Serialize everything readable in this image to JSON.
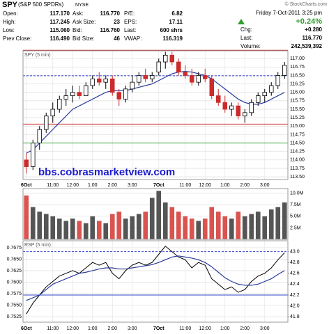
{
  "header": {
    "symbol": "SPY",
    "name": "(S&P 500 SPDRs)",
    "exchange": "NYSE",
    "copyright": "© StockCharts.com",
    "date": "Friday  7-Oct-2011  3:25 pm",
    "change_pct": "+0.24%",
    "quote": [
      [
        {
          "label": "Open:",
          "value": "117.170"
        },
        {
          "label": "Ask:",
          "value": "116.770"
        },
        {
          "label": "P/E:",
          "value": "6.82"
        }
      ],
      [
        {
          "label": "High:",
          "value": "117.245"
        },
        {
          "label": "Ask Size:",
          "value": "23"
        },
        {
          "label": "EPS:",
          "value": "17.11"
        }
      ],
      [
        {
          "label": "Low:",
          "value": "115.060"
        },
        {
          "label": "Bid:",
          "value": "116.760"
        },
        {
          "label": "Last:",
          "value": "600 shrs"
        }
      ],
      [
        {
          "label": "Prev Close:",
          "value": "116.490"
        },
        {
          "label": "Bid Size:",
          "value": "46"
        },
        {
          "label": "VWAP:",
          "value": "116.319"
        }
      ]
    ],
    "summary": [
      {
        "label": "Chg:",
        "value": "+0.280"
      },
      {
        "label": "Last:",
        "value": "116.770"
      },
      {
        "label": "Volume:",
        "value": "242,539,392"
      }
    ]
  },
  "chart_data": [
    {
      "type": "candlestick",
      "title": "SPY (5 min)",
      "annotation": "bbs.cobrasmarketview.com",
      "categories": [
        "6Oct",
        null,
        null,
        null,
        "11:00",
        null,
        null,
        "12:00",
        null,
        null,
        "1:00",
        null,
        null,
        "2:00",
        null,
        null,
        "3:00",
        null,
        null,
        null,
        "7Oct",
        null,
        null,
        null,
        "11:00",
        null,
        null,
        "12:00",
        null,
        null,
        "1:00",
        null,
        null,
        "2:00",
        null,
        null,
        "3:00",
        null,
        null,
        null
      ],
      "open": [
        114.0,
        113.8,
        114.5,
        114.9,
        115.3,
        115.5,
        115.8,
        115.9,
        116.0,
        115.9,
        116.2,
        116.4,
        116.3,
        116.4,
        116.0,
        115.8,
        116.1,
        116.3,
        116.5,
        116.4,
        116.6,
        116.9,
        117.1,
        116.9,
        116.6,
        116.5,
        116.3,
        116.5,
        116.4,
        115.9,
        115.7,
        115.5,
        115.6,
        115.3,
        115.4,
        115.7,
        115.9,
        116.0,
        116.2,
        116.5
      ],
      "high": [
        114.2,
        114.6,
        115.0,
        115.4,
        115.7,
        115.9,
        116.1,
        116.2,
        116.2,
        116.3,
        116.5,
        116.6,
        116.5,
        116.5,
        116.1,
        116.2,
        116.5,
        116.6,
        116.7,
        116.6,
        117.0,
        117.2,
        117.2,
        117.0,
        116.8,
        116.7,
        116.6,
        116.7,
        116.5,
        116.1,
        115.9,
        115.7,
        115.7,
        115.5,
        115.8,
        116.0,
        116.1,
        116.3,
        116.6,
        116.9
      ],
      "low": [
        113.6,
        113.7,
        114.3,
        114.8,
        115.1,
        115.4,
        115.6,
        115.7,
        115.8,
        115.9,
        116.1,
        116.2,
        116.1,
        115.9,
        115.6,
        115.7,
        116.0,
        116.2,
        116.3,
        116.3,
        116.5,
        116.7,
        116.8,
        116.5,
        116.4,
        116.2,
        116.2,
        116.3,
        115.8,
        115.6,
        115.4,
        115.3,
        115.2,
        115.1,
        115.3,
        115.6,
        115.7,
        115.9,
        116.1,
        116.4
      ],
      "close": [
        113.8,
        114.5,
        114.9,
        115.3,
        115.5,
        115.8,
        115.9,
        116.0,
        115.9,
        116.2,
        116.4,
        116.3,
        116.4,
        116.0,
        115.8,
        116.1,
        116.3,
        116.5,
        116.4,
        116.5,
        116.9,
        117.1,
        116.9,
        116.6,
        116.5,
        116.3,
        116.5,
        116.4,
        115.9,
        115.7,
        115.5,
        115.6,
        115.3,
        115.4,
        115.7,
        115.9,
        116.0,
        116.2,
        116.5,
        116.8
      ],
      "up_color": "#000000",
      "down_color": "#cc2b2b",
      "ma": {
        "color": "#2b3a9a",
        "values": [
          114.2,
          114.3,
          114.5,
          114.7,
          114.9,
          115.1,
          115.3,
          115.5,
          115.6,
          115.7,
          115.8,
          115.9,
          116.0,
          116.05,
          116.05,
          116.05,
          116.1,
          116.15,
          116.2,
          116.25,
          116.35,
          116.45,
          116.55,
          116.6,
          116.62,
          116.6,
          116.55,
          116.5,
          116.4,
          116.25,
          116.1,
          115.95,
          115.8,
          115.7,
          115.65,
          115.65,
          115.7,
          115.8,
          115.9,
          116.0
        ]
      },
      "levels": [
        {
          "value": 117.245,
          "color": "#cc2b2b",
          "dashed": false
        },
        {
          "value": 116.49,
          "color": "#3344cc",
          "dashed": true
        },
        {
          "value": 115.06,
          "color": "#cc2b2b",
          "dashed": false
        },
        {
          "value": 114.5,
          "color": "#2e9e2e",
          "dashed": false
        }
      ],
      "ylim": [
        113.42,
        117.23
      ],
      "yticks": [
        {
          "value": 113.5,
          "label": "113.50"
        },
        113.75,
        {
          "value": 114,
          "label": "114.00"
        },
        114.25,
        {
          "value": 114.5,
          "label": "114.50"
        },
        114.75,
        {
          "value": 115,
          "label": "115.00"
        },
        115.25,
        {
          "value": 115.5,
          "label": "115.50"
        },
        115.75,
        {
          "value": 116,
          "label": "116.00"
        },
        116.25,
        {
          "value": 116.5,
          "label": "116.50"
        },
        116.75,
        {
          "value": 117,
          "label": "117.00"
        }
      ],
      "grid": true
    },
    {
      "type": "bar",
      "values": [
        9.5,
        7,
        6,
        5.5,
        5,
        4.5,
        4,
        4.5,
        4,
        3.5,
        5,
        4,
        3.5,
        5.5,
        6,
        4.5,
        5,
        5.5,
        6,
        9,
        10.5,
        8,
        7,
        6,
        5,
        4.5,
        4,
        4.5,
        7,
        6,
        5,
        4.5,
        6,
        5,
        5.5,
        6,
        5,
        6.5,
        7,
        8
      ],
      "up_color": "#555555",
      "down_color": "#d9534f",
      "ylim": [
        0,
        11
      ],
      "yticks": [
        {
          "value": 2.5,
          "label": "2.5M"
        },
        {
          "value": 5,
          "label": "5.0M"
        },
        {
          "value": 7.5,
          "label": "7.5M"
        },
        {
          "value": 10,
          "label": "10.0M"
        }
      ],
      "grid": true
    },
    {
      "type": "line",
      "title": "RSP (5 min)",
      "categories": [
        "6Oct",
        null,
        null,
        null,
        "11:00",
        null,
        null,
        "12:00",
        null,
        null,
        "1:00",
        null,
        null,
        "2:00",
        null,
        null,
        "3:00",
        null,
        null,
        null,
        "7Oct",
        null,
        null,
        null,
        "11:00",
        null,
        null,
        "12:00",
        null,
        null,
        "1:00",
        null,
        null,
        "2:00",
        null,
        null,
        "3:00",
        null,
        null,
        null
      ],
      "series": [
        {
          "color": "#000000",
          "axis": "y2",
          "values": [
            41.85,
            42.05,
            42.2,
            42.35,
            42.45,
            42.55,
            42.6,
            42.65,
            42.6,
            42.7,
            42.8,
            42.75,
            42.8,
            42.6,
            42.5,
            42.65,
            42.75,
            42.8,
            42.75,
            42.8,
            42.95,
            43.1,
            43.0,
            42.9,
            42.85,
            42.7,
            42.8,
            42.75,
            42.5,
            42.4,
            42.3,
            42.35,
            42.25,
            42.3,
            42.45,
            42.55,
            42.6,
            42.7,
            42.85,
            42.98
          ]
        },
        {
          "color": "#2b3a9a",
          "axis": "y2",
          "values": [
            42.1,
            42.15,
            42.2,
            42.3,
            42.4,
            42.45,
            42.5,
            42.55,
            42.6,
            42.62,
            42.65,
            42.68,
            42.7,
            42.7,
            42.68,
            42.68,
            42.7,
            42.72,
            42.74,
            42.76,
            42.8,
            42.85,
            42.9,
            42.92,
            42.9,
            42.88,
            42.85,
            42.8,
            42.72,
            42.62,
            42.52,
            42.45,
            42.4,
            42.38,
            42.38,
            42.4,
            42.45,
            42.5,
            42.58,
            42.65
          ]
        }
      ],
      "levels": [
        {
          "value": 43.0,
          "color": "#3344cc",
          "dashed": true
        },
        {
          "value": 42.2,
          "color": "#3344cc",
          "dashed": false
        }
      ],
      "ylim": [
        0.7513,
        0.769
      ],
      "yticks": [
        0.7525,
        {
          "value": 0.755,
          "label": "0.7550"
        },
        0.7575,
        {
          "value": 0.76,
          "label": "0.7600"
        },
        0.7625,
        {
          "value": 0.765,
          "label": "0.7650"
        },
        0.7675
      ],
      "y2lim": [
        41.7,
        43.2
      ],
      "y2ticks": [
        41.8,
        {
          "value": 42,
          "label": "42.0"
        },
        42.2,
        42.4,
        42.6,
        42.8,
        {
          "value": 43,
          "label": "43.0"
        }
      ],
      "grid": true
    }
  ]
}
